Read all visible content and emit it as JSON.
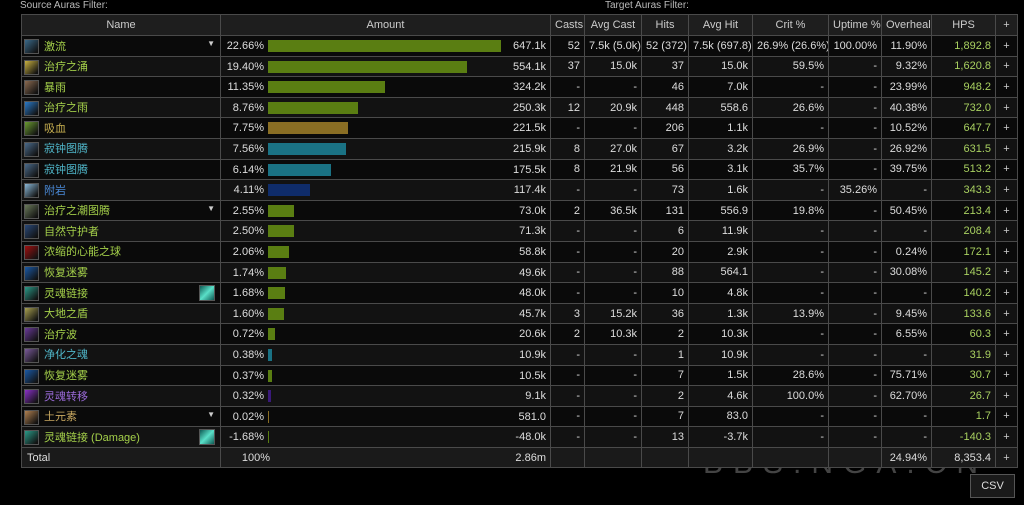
{
  "filters": {
    "source_label": "Source Auras Filter:",
    "target_label": "Target Auras Filter:"
  },
  "columns": [
    "Name",
    "Amount",
    "Casts",
    "Avg Cast",
    "Hits",
    "Avg Hit",
    "Crit %",
    "Uptime %",
    "Overheal",
    "HPS",
    "+"
  ],
  "rows": [
    {
      "name": "激流",
      "color": "#a4d04a",
      "icon": "#3a6a8a",
      "caret": true,
      "pct": "22.66%",
      "p": 22.66,
      "bar": "#5a7e12",
      "amount": "647.1k",
      "casts": "52",
      "avg_cast": "7.5k (5.0k)",
      "hits": "52 (372)",
      "avg_hit": "7.5k (697.8)",
      "crit": "26.9% (26.6%)",
      "uptime": "100.00%",
      "overheal": "11.90%",
      "hps": "1,892.8"
    },
    {
      "name": "治疗之涌",
      "color": "#a4d04a",
      "icon": "#c8b040",
      "pct": "19.40%",
      "p": 19.4,
      "bar": "#5a7e12",
      "amount": "554.1k",
      "casts": "37",
      "avg_cast": "15.0k",
      "hits": "37",
      "avg_hit": "15.0k",
      "crit": "59.5%",
      "uptime": "-",
      "overheal": "9.32%",
      "hps": "1,620.8"
    },
    {
      "name": "暴雨",
      "color": "#a4d04a",
      "icon": "#8a6a50",
      "pct": "11.35%",
      "p": 11.35,
      "bar": "#5a7e12",
      "amount": "324.2k",
      "casts": "-",
      "avg_cast": "-",
      "hits": "46",
      "avg_hit": "7.0k",
      "crit": "-",
      "uptime": "-",
      "overheal": "23.99%",
      "hps": "948.2"
    },
    {
      "name": "治疗之雨",
      "color": "#a4d04a",
      "icon": "#2a7ac8",
      "pct": "8.76%",
      "p": 8.76,
      "bar": "#5a7e12",
      "amount": "250.3k",
      "casts": "12",
      "avg_cast": "20.9k",
      "hits": "448",
      "avg_hit": "558.6",
      "crit": "26.6%",
      "uptime": "-",
      "overheal": "40.38%",
      "hps": "732.0"
    },
    {
      "name": "吸血",
      "color": "#c8b050",
      "icon": "#6a9a30",
      "pct": "7.75%",
      "p": 7.75,
      "bar": "#8a6e24",
      "amount": "221.5k",
      "casts": "-",
      "avg_cast": "-",
      "hits": "206",
      "avg_hit": "1.1k",
      "crit": "-",
      "uptime": "-",
      "overheal": "10.52%",
      "hps": "647.7"
    },
    {
      "name": "寂钟图腾",
      "color": "#4fb5c8",
      "icon": "#4a6a8a",
      "pct": "7.56%",
      "p": 7.56,
      "bar": "#1a7284",
      "amount": "215.9k",
      "casts": "8",
      "avg_cast": "27.0k",
      "hits": "67",
      "avg_hit": "3.2k",
      "crit": "26.9%",
      "uptime": "-",
      "overheal": "26.92%",
      "hps": "631.5"
    },
    {
      "name": "寂钟图腾",
      "color": "#4fb5c8",
      "icon": "#4a6a8a",
      "pct": "6.14%",
      "p": 6.14,
      "bar": "#1a7284",
      "amount": "175.5k",
      "casts": "8",
      "avg_cast": "21.9k",
      "hits": "56",
      "avg_hit": "3.1k",
      "crit": "35.7%",
      "uptime": "-",
      "overheal": "39.75%",
      "hps": "513.2"
    },
    {
      "name": "附岩",
      "color": "#4a8ad8",
      "icon": "#8ab8d8",
      "pct": "4.11%",
      "p": 4.11,
      "bar": "#0f2c6a",
      "amount": "117.4k",
      "casts": "-",
      "avg_cast": "-",
      "hits": "73",
      "avg_hit": "1.6k",
      "crit": "-",
      "uptime": "35.26%",
      "overheal": "-",
      "hps": "343.3"
    },
    {
      "name": "治疗之潮图腾",
      "color": "#a4d04a",
      "icon": "#6a7a5a",
      "caret": true,
      "pct": "2.55%",
      "p": 2.55,
      "bar": "#5a7e12",
      "amount": "73.0k",
      "casts": "2",
      "avg_cast": "36.5k",
      "hits": "131",
      "avg_hit": "556.9",
      "crit": "19.8%",
      "uptime": "-",
      "overheal": "50.45%",
      "hps": "213.4"
    },
    {
      "name": "自然守护者",
      "color": "#a4d04a",
      "icon": "#2a4a7a",
      "pct": "2.50%",
      "p": 2.5,
      "bar": "#5a7e12",
      "amount": "71.3k",
      "casts": "-",
      "avg_cast": "-",
      "hits": "6",
      "avg_hit": "11.9k",
      "crit": "-",
      "uptime": "-",
      "overheal": "-",
      "hps": "208.4"
    },
    {
      "name": "浓缩的心能之球",
      "color": "#a4d04a",
      "icon": "#a01010",
      "pct": "2.06%",
      "p": 2.06,
      "bar": "#5a7e12",
      "amount": "58.8k",
      "casts": "-",
      "avg_cast": "-",
      "hits": "20",
      "avg_hit": "2.9k",
      "crit": "-",
      "uptime": "-",
      "overheal": "0.24%",
      "hps": "172.1"
    },
    {
      "name": "恢复迷雾",
      "color": "#a4d04a",
      "icon": "#1a5aa8",
      "pct": "1.74%",
      "p": 1.74,
      "bar": "#5a7e12",
      "amount": "49.6k",
      "casts": "-",
      "avg_cast": "-",
      "hits": "88",
      "avg_hit": "564.1",
      "crit": "-",
      "uptime": "-",
      "overheal": "30.08%",
      "hps": "145.2"
    },
    {
      "name": "灵魂链接",
      "color": "#a4d04a",
      "icon": "#2a9a88",
      "icon2": true,
      "pct": "1.68%",
      "p": 1.68,
      "bar": "#5a7e12",
      "amount": "48.0k",
      "casts": "-",
      "avg_cast": "-",
      "hits": "10",
      "avg_hit": "4.8k",
      "crit": "-",
      "uptime": "-",
      "overheal": "-",
      "hps": "140.2"
    },
    {
      "name": "大地之盾",
      "color": "#a4d04a",
      "icon": "#a8a050",
      "pct": "1.60%",
      "p": 1.6,
      "bar": "#5a7e12",
      "amount": "45.7k",
      "casts": "3",
      "avg_cast": "15.2k",
      "hits": "36",
      "avg_hit": "1.3k",
      "crit": "13.9%",
      "uptime": "-",
      "overheal": "9.45%",
      "hps": "133.6"
    },
    {
      "name": "治疗波",
      "color": "#a4d04a",
      "icon": "#6a3a9a",
      "pct": "0.72%",
      "p": 0.72,
      "bar": "#5a7e12",
      "amount": "20.6k",
      "casts": "2",
      "avg_cast": "10.3k",
      "hits": "2",
      "avg_hit": "10.3k",
      "crit": "-",
      "uptime": "-",
      "overheal": "6.55%",
      "hps": "60.3"
    },
    {
      "name": "净化之魂",
      "color": "#4fb5c8",
      "icon": "#7a5a9a",
      "pct": "0.38%",
      "p": 0.38,
      "bar": "#1a7284",
      "amount": "10.9k",
      "casts": "-",
      "avg_cast": "-",
      "hits": "1",
      "avg_hit": "10.9k",
      "crit": "-",
      "uptime": "-",
      "overheal": "-",
      "hps": "31.9"
    },
    {
      "name": "恢复迷雾",
      "color": "#a4d04a",
      "icon": "#1a5aa8",
      "pct": "0.37%",
      "p": 0.37,
      "bar": "#5a7e12",
      "amount": "10.5k",
      "casts": "-",
      "avg_cast": "-",
      "hits": "7",
      "avg_hit": "1.5k",
      "crit": "28.6%",
      "uptime": "-",
      "overheal": "75.71%",
      "hps": "30.7"
    },
    {
      "name": "灵魂转移",
      "color": "#9a6ad8",
      "icon": "#8a30c8",
      "pct": "0.32%",
      "p": 0.32,
      "bar": "#3a1a7a",
      "amount": "9.1k",
      "casts": "-",
      "avg_cast": "-",
      "hits": "2",
      "avg_hit": "4.6k",
      "crit": "100.0%",
      "uptime": "-",
      "overheal": "62.70%",
      "hps": "26.7"
    },
    {
      "name": "土元素",
      "color": "#c8a860",
      "icon": "#b08050",
      "caret": true,
      "pct": "0.02%",
      "p": 0.02,
      "bar": "#8a6e24",
      "amount": "581.0",
      "casts": "-",
      "avg_cast": "-",
      "hits": "7",
      "avg_hit": "83.0",
      "crit": "-",
      "uptime": "-",
      "overheal": "-",
      "hps": "1.7"
    },
    {
      "name": "灵魂链接 (Damage)",
      "color": "#a4d04a",
      "icon": "#2a9a88",
      "icon2": true,
      "pct": "-1.68%",
      "p": 0,
      "bar": "#5a7e12",
      "amount": "-48.0k",
      "casts": "-",
      "avg_cast": "-",
      "hits": "13",
      "avg_hit": "-3.7k",
      "crit": "-",
      "uptime": "-",
      "overheal": "-",
      "hps": "-140.3"
    }
  ],
  "total": {
    "label": "Total",
    "pct": "100%",
    "amount": "2.86m",
    "overheal": "24.94%",
    "hps": "8,353.4"
  },
  "plus": "+",
  "csv_label": "CSV",
  "watermark": {
    "logo": "NGA",
    "site": "BBS.NGA.CN"
  }
}
